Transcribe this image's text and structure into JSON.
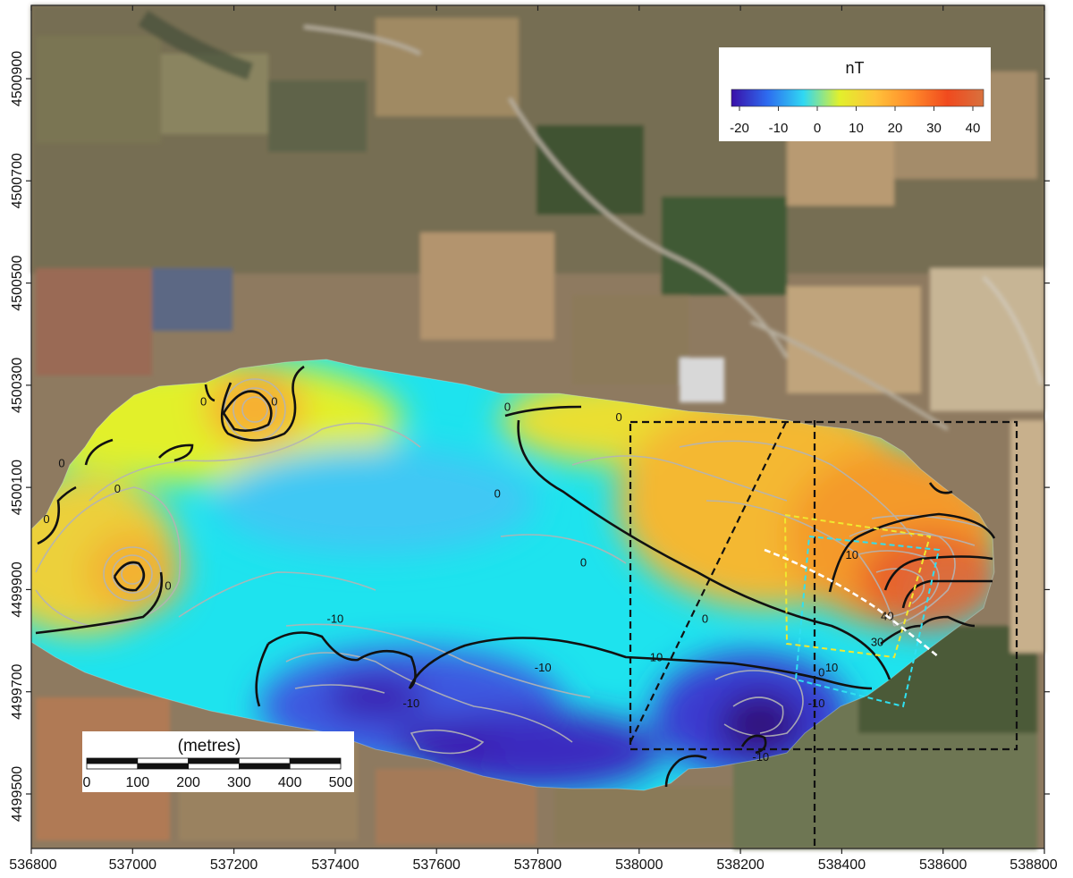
{
  "colorbar": {
    "title": "nT",
    "ticks": [
      "-20",
      "-10",
      "0",
      "10",
      "20",
      "30",
      "40"
    ],
    "stops": [
      "#3a0fa8",
      "#2d6cf0",
      "#30d8f2",
      "#e2f02c",
      "#ffc23a",
      "#ff8a2a",
      "#f04a1e",
      "#d8713e"
    ]
  },
  "scalebar": {
    "title": "(metres)",
    "ticks": [
      "0",
      "100",
      "200",
      "300",
      "400",
      "500"
    ]
  },
  "axes": {
    "x_ticks": [
      "536800",
      "537000",
      "537200",
      "537400",
      "537600",
      "537800",
      "538000",
      "538200",
      "538400",
      "538600",
      "538800"
    ],
    "y_ticks": [
      "4500900",
      "4500700",
      "4500500",
      "4500300",
      "4500100",
      "4499900",
      "4499700",
      "4499500"
    ]
  },
  "contour_labels": [
    {
      "text": "0",
      "x": 537140,
      "y": 4500260
    },
    {
      "text": "0",
      "x": 537280,
      "y": 4500260
    },
    {
      "text": "0",
      "x": 536860,
      "y": 4500140
    },
    {
      "text": "0",
      "x": 536970,
      "y": 4500090
    },
    {
      "text": "0",
      "x": 536830,
      "y": 4500030
    },
    {
      "text": "0",
      "x": 537070,
      "y": 4499900
    },
    {
      "text": "0",
      "x": 537740,
      "y": 4500250
    },
    {
      "text": "0",
      "x": 537960,
      "y": 4500230
    },
    {
      "text": "0",
      "x": 537720,
      "y": 4500080
    },
    {
      "text": "0",
      "x": 537890,
      "y": 4499945
    },
    {
      "text": "0",
      "x": 538130,
      "y": 4499835
    },
    {
      "text": "0",
      "x": 538360,
      "y": 4499730
    },
    {
      "text": "-10",
      "x": 537400,
      "y": 4499835
    },
    {
      "text": "-10",
      "x": 537550,
      "y": 4499670
    },
    {
      "text": "-10",
      "x": 537810,
      "y": 4499740
    },
    {
      "text": "-10",
      "x": 538030,
      "y": 4499760
    },
    {
      "text": "-10",
      "x": 538350,
      "y": 4499670
    },
    {
      "text": "-10",
      "x": 538240,
      "y": 4499565
    },
    {
      "text": "10",
      "x": 538420,
      "y": 4499960
    },
    {
      "text": "10",
      "x": 538380,
      "y": 4499740
    },
    {
      "text": "30",
      "x": 538470,
      "y": 4499790
    },
    {
      "text": "40",
      "x": 538490,
      "y": 4499840
    }
  ]
}
